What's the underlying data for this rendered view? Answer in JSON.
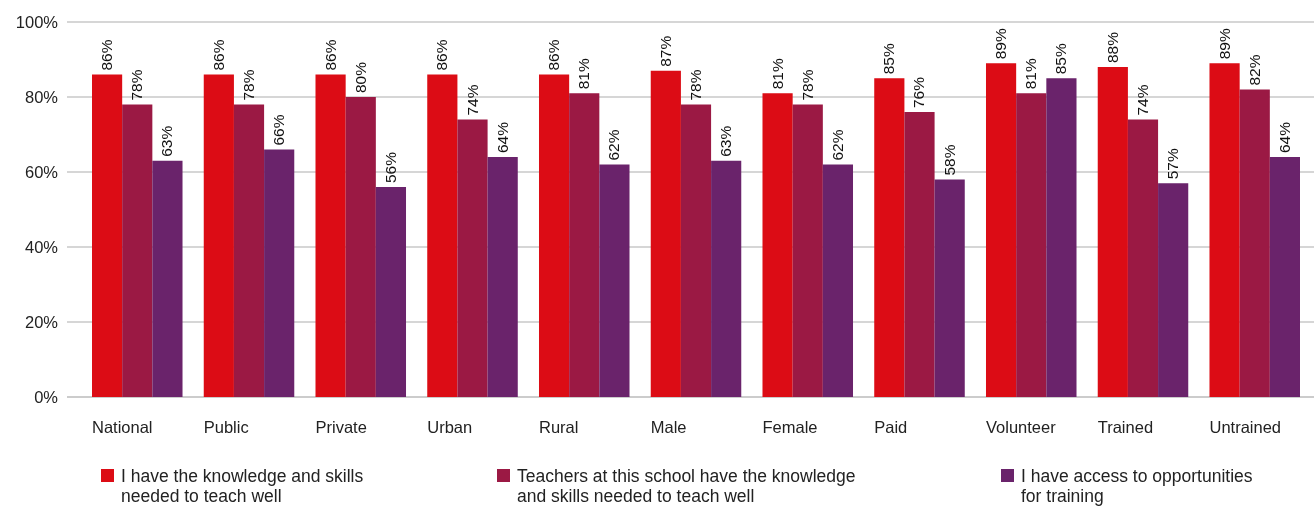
{
  "chart_data": {
    "type": "bar",
    "categories": [
      "National",
      "Public",
      "Private",
      "Urban",
      "Rural",
      "Male",
      "Female",
      "Paid",
      "Volunteer",
      "Trained",
      "Untrained"
    ],
    "series": [
      {
        "name": "I have the knowledge and skills needed to teach well",
        "color": "#dc0c15",
        "values": [
          86,
          86,
          86,
          86,
          86,
          87,
          81,
          85,
          89,
          88,
          89
        ],
        "value_labels": [
          "86%",
          "86%",
          "86%",
          "86%",
          "86%",
          "87%",
          "81%",
          "85%",
          "89%",
          "88%",
          "89%"
        ]
      },
      {
        "name": "Teachers at this school have the knowledge and skills needed to teach well",
        "color": "#9b1944",
        "values": [
          78,
          78,
          80,
          74,
          81,
          78,
          78,
          76,
          81,
          74,
          82
        ],
        "value_labels": [
          "78%",
          "78%",
          "80%",
          "74%",
          "81%",
          "78%",
          "78%",
          "76%",
          "81%",
          "74%",
          "82%"
        ]
      },
      {
        "name": "I have access to opportunities for training",
        "color": "#6a236b",
        "values": [
          63,
          66,
          56,
          64,
          62,
          63,
          62,
          58,
          85,
          57,
          64
        ],
        "value_labels": [
          "63%",
          "66%",
          "56%",
          "64%",
          "62%",
          "63%",
          "62%",
          "58%",
          "85%",
          "57%",
          "64%"
        ]
      }
    ],
    "ylim": [
      0,
      100
    ],
    "yticks": [
      {
        "value": 0,
        "label": "0%"
      },
      {
        "value": 20,
        "label": "20%"
      },
      {
        "value": 40,
        "label": "40%"
      },
      {
        "value": 60,
        "label": "60%"
      },
      {
        "value": 80,
        "label": "80%"
      },
      {
        "value": 100,
        "label": "100%"
      }
    ],
    "grid": "y",
    "legend": "bottom"
  }
}
